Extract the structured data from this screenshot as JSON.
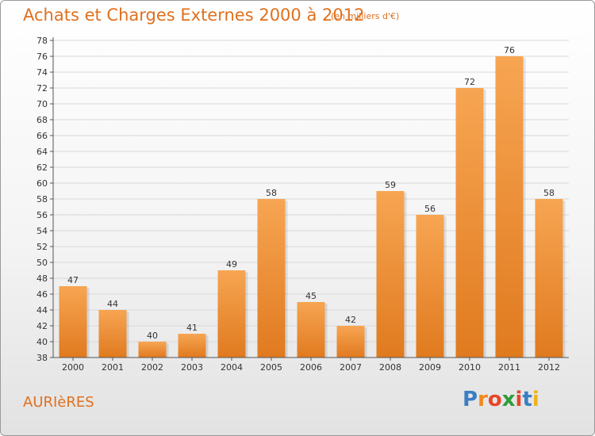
{
  "title": "Achats et Charges Externes 2000 à 2012",
  "subtitle": "(en milliers d'€)",
  "place": "AURIèRES",
  "brand": "Proxiti",
  "colors": {
    "title": "#e0701e",
    "bar_top": "#f7a552",
    "bar_bottom": "#e07a1f",
    "grid": "#d8d8d8",
    "axis": "#555555"
  },
  "chart_data": {
    "type": "bar",
    "title": "Achats et Charges Externes 2000 à 2012",
    "subtitle": "(en milliers d'€)",
    "xlabel": "",
    "ylabel": "",
    "categories": [
      "2000",
      "2001",
      "2002",
      "2003",
      "2004",
      "2005",
      "2006",
      "2007",
      "2008",
      "2009",
      "2010",
      "2011",
      "2012"
    ],
    "values": [
      47,
      44,
      40,
      41,
      49,
      58,
      45,
      42,
      59,
      56,
      72,
      76,
      58
    ],
    "data_labels": [
      "47",
      "44",
      "40",
      "41",
      "49",
      "58",
      "45",
      "42",
      "59",
      "56",
      "72",
      "76",
      "58"
    ],
    "ylim": [
      38,
      78
    ],
    "ytick_step": 2,
    "grid": true
  }
}
